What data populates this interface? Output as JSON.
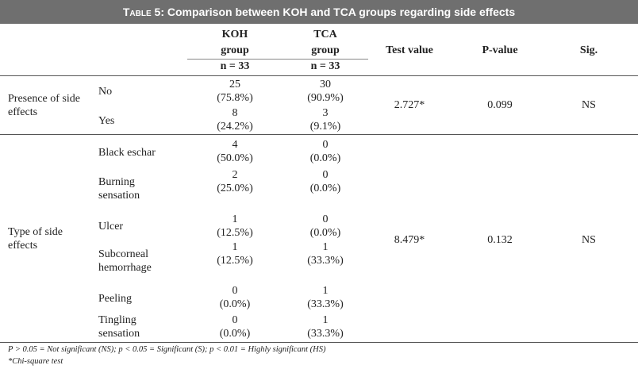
{
  "title": {
    "caption": "Table 5",
    "text": "Comparison between KOH and TCA groups regarding side effects"
  },
  "headers": {
    "koh": {
      "line1": "KOH",
      "line2": "group",
      "n": "n = 33"
    },
    "tca": {
      "line1": "TCA",
      "line2": "group",
      "n": "n = 33"
    },
    "test_value": "Test value",
    "p_value": "P-value",
    "sig": "Sig."
  },
  "sections": [
    {
      "label_line1": "Presence of side",
      "label_line2": "effects",
      "test_value": "2.727*",
      "p_value": "0.099",
      "sig": "NS",
      "rows": [
        {
          "name": "No",
          "koh_n": "25",
          "koh_p": "(75.8%)",
          "tca_n": "30",
          "tca_p": "(90.9%)"
        },
        {
          "name": "Yes",
          "koh_n": "8",
          "koh_p": "(24.2%)",
          "tca_n": "3",
          "tca_p": "(9.1%)"
        }
      ]
    },
    {
      "label_line1": "Type of side",
      "label_line2": "effects",
      "test_value": "8.479*",
      "p_value": "0.132",
      "sig": "NS",
      "rows": [
        {
          "name": "Black eschar",
          "name2": "",
          "koh_n": "4",
          "koh_p": "(50.0%)",
          "tca_n": "0",
          "tca_p": "(0.0%)"
        },
        {
          "name": "Burning",
          "name2": "sensation",
          "koh_n": "2",
          "koh_p": "(25.0%)",
          "tca_n": "0",
          "tca_p": "(0.0%)"
        },
        {
          "name": "Ulcer",
          "name2": "",
          "koh_n": "1",
          "koh_p": "(12.5%)",
          "tca_n": "0",
          "tca_p": "(0.0%)"
        },
        {
          "name": "Subcorneal",
          "name2": "hemorrhage",
          "koh_n": "1",
          "koh_p": "(12.5%)",
          "tca_n": "1",
          "tca_p": "(33.3%)"
        },
        {
          "name": "Peeling",
          "name2": "",
          "koh_n": "0",
          "koh_p": "(0.0%)",
          "tca_n": "1",
          "tca_p": "(33.3%)"
        },
        {
          "name": "Tingling",
          "name2": "sensation",
          "koh_n": "0",
          "koh_p": "(0.0%)",
          "tca_n": "1",
          "tca_p": "(33.3%)"
        }
      ]
    }
  ],
  "footnotes": {
    "line1": "P > 0.05 = Not significant (NS); p < 0.05 = Significant (S); p < 0.01 = Highly significant (HS)",
    "line2": "*Chi-square test"
  }
}
